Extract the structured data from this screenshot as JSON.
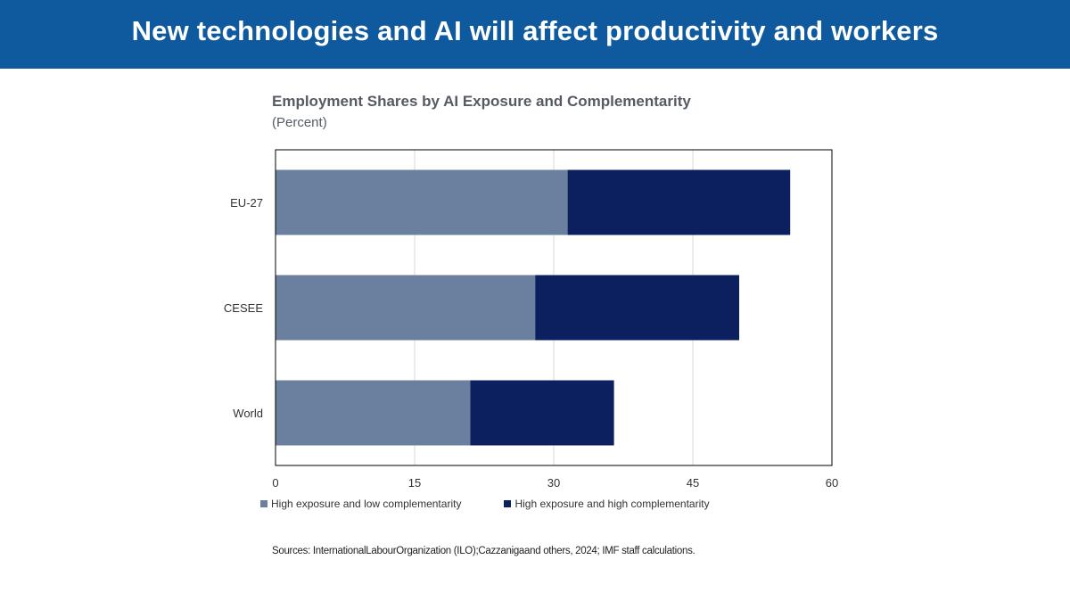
{
  "banner": {
    "title": "New technologies and AI will affect productivity and workers"
  },
  "chart_data": {
    "type": "bar",
    "orientation": "horizontal",
    "stacked": true,
    "title": "Employment Shares by AI Exposure and Complementarity",
    "subtitle": "(Percent)",
    "categories": [
      "EU-27",
      "CESEE",
      "World"
    ],
    "series": [
      {
        "name": "High exposure and low complementarity",
        "color": "#6b7f9e",
        "values": [
          31.5,
          28,
          21
        ]
      },
      {
        "name": "High exposure and high complementarity",
        "color": "#0c1f5e",
        "values": [
          24,
          22,
          15.5
        ]
      }
    ],
    "xlim": [
      0,
      60
    ],
    "xticks": [
      "0",
      "15",
      "30",
      "45",
      "60"
    ],
    "grid": true,
    "legend_position": "bottom"
  },
  "sources": "Sources: InternationalLabourOrganization (ILO);Cazzanigaand others, 2024; IMF staff calculations."
}
